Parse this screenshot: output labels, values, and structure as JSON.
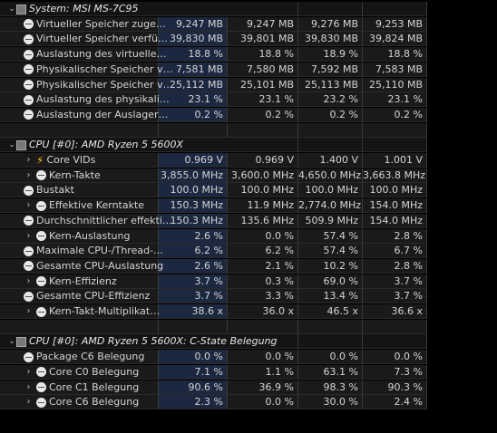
{
  "groups": [
    {
      "title": "System: MSI MS-7C95",
      "rows": [
        {
          "label": "Virtueller Speicher zuge…",
          "values": [
            "9,247 MB",
            "9,247 MB",
            "9,276 MB",
            "9,253 MB"
          ],
          "icon": "circle-minus-icon",
          "indent": 0
        },
        {
          "label": "Virtueller Speicher verfü…",
          "values": [
            "39,830 MB",
            "39,801 MB",
            "39,830 MB",
            "39,824 MB"
          ],
          "icon": "circle-minus-icon",
          "indent": 0
        },
        {
          "label": "Auslastung des virtuelle…",
          "values": [
            "18.8 %",
            "18.8 %",
            "18.9 %",
            "18.8 %"
          ],
          "icon": "circle-minus-icon",
          "indent": 0
        },
        {
          "label": "Physikalischer Speicher v…",
          "values": [
            "7,581 MB",
            "7,580 MB",
            "7,592 MB",
            "7,583 MB"
          ],
          "icon": "circle-minus-icon",
          "indent": 0
        },
        {
          "label": "Physikalischer Speicher v…",
          "values": [
            "25,112 MB",
            "25,101 MB",
            "25,113 MB",
            "25,110 MB"
          ],
          "icon": "circle-minus-icon",
          "indent": 0
        },
        {
          "label": "Auslastung des physikali…",
          "values": [
            "23.1 %",
            "23.1 %",
            "23.2 %",
            "23.1 %"
          ],
          "icon": "circle-minus-icon",
          "indent": 0
        },
        {
          "label": "Auslastung der Auslager…",
          "values": [
            "0.2 %",
            "0.2 %",
            "0.2 %",
            "0.2 %"
          ],
          "icon": "circle-minus-icon",
          "indent": 0
        }
      ]
    },
    {
      "title": "CPU [#0]: AMD Ryzen 5 5600X",
      "rows": [
        {
          "label": "Core VIDs",
          "values": [
            "0.969 V",
            "0.969 V",
            "1.400 V",
            "1.001 V"
          ],
          "icon": "bolt-icon",
          "indent": 1
        },
        {
          "label": "Kern-Takte",
          "values": [
            "3,855.0 MHz",
            "3,600.0 MHz",
            "4,650.0 MHz",
            "3,663.8 MHz"
          ],
          "icon": "circle-minus-icon",
          "indent": 1
        },
        {
          "label": "Bustakt",
          "values": [
            "100.0 MHz",
            "100.0 MHz",
            "100.0 MHz",
            "100.0 MHz"
          ],
          "icon": "circle-minus-icon",
          "indent": 0
        },
        {
          "label": "Effektive Kerntakte",
          "values": [
            "150.3 MHz",
            "11.9 MHz",
            "2,774.0 MHz",
            "154.0 MHz"
          ],
          "icon": "circle-minus-icon",
          "indent": 1
        },
        {
          "label": "Durchschnittlicher effekti…",
          "values": [
            "150.3 MHz",
            "135.6 MHz",
            "509.9 MHz",
            "154.0 MHz"
          ],
          "icon": "circle-minus-icon",
          "indent": 0
        },
        {
          "label": "Kern-Auslastung",
          "values": [
            "2.6 %",
            "0.0 %",
            "57.4 %",
            "2.8 %"
          ],
          "icon": "circle-minus-icon",
          "indent": 1
        },
        {
          "label": "Maximale CPU-/Thread-…",
          "values": [
            "6.2 %",
            "6.2 %",
            "57.4 %",
            "6.7 %"
          ],
          "icon": "circle-minus-icon",
          "indent": 0
        },
        {
          "label": "Gesamte CPU-Auslastung",
          "values": [
            "2.6 %",
            "2.1 %",
            "10.2 %",
            "2.8 %"
          ],
          "icon": "circle-minus-icon",
          "indent": 0
        },
        {
          "label": "Kern-Effizienz",
          "values": [
            "3.7 %",
            "0.3 %",
            "69.0 %",
            "3.7 %"
          ],
          "icon": "circle-minus-icon",
          "indent": 1
        },
        {
          "label": "Gesamte CPU-Effizienz",
          "values": [
            "3.7 %",
            "3.3 %",
            "13.4 %",
            "3.7 %"
          ],
          "icon": "circle-minus-icon",
          "indent": 0
        },
        {
          "label": "Kern-Takt-Multiplikat…",
          "values": [
            "38.6 x",
            "36.0 x",
            "46.5 x",
            "36.6 x"
          ],
          "icon": "circle-minus-icon",
          "indent": 1
        }
      ]
    },
    {
      "title": "CPU [#0]: AMD Ryzen 5 5600X: C-State Belegung",
      "rows": [
        {
          "label": "Package C6 Belegung",
          "values": [
            "0.0 %",
            "0.0 %",
            "0.0 %",
            "0.0 %"
          ],
          "icon": "circle-minus-icon",
          "indent": 0
        },
        {
          "label": "Core C0 Belegung",
          "values": [
            "7.1 %",
            "1.1 %",
            "63.1 %",
            "7.3 %"
          ],
          "icon": "circle-minus-icon",
          "indent": 1
        },
        {
          "label": "Core C1 Belegung",
          "values": [
            "90.6 %",
            "36.9 %",
            "98.3 %",
            "90.3 %"
          ],
          "icon": "circle-minus-icon",
          "indent": 1
        },
        {
          "label": "Core C6 Belegung",
          "values": [
            "2.3 %",
            "0.0 %",
            "30.0 %",
            "2.4 %"
          ],
          "icon": "circle-minus-icon",
          "indent": 1
        }
      ]
    }
  ],
  "colors": {
    "highlight_column": "#1b2840",
    "background": "#000000",
    "cell": "#1a1a1a",
    "bolt": "#f0c020"
  }
}
